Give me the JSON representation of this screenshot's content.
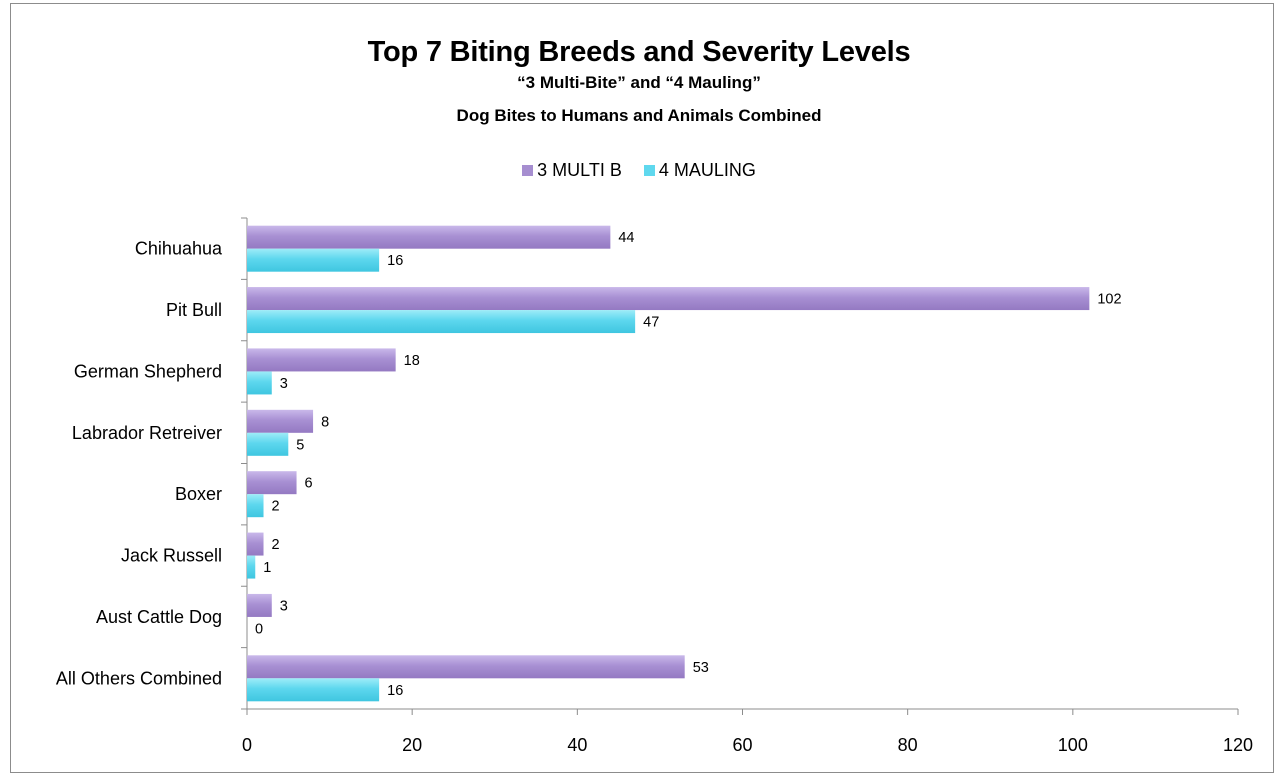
{
  "chart_data": {
    "type": "bar",
    "orientation": "horizontal",
    "title": "Top 7 Biting Breeds and Severity Levels",
    "subtitle": [
      "“3 Multi-Bite” and “4 Mauling”",
      "Dog Bites to Humans and Animals Combined"
    ],
    "categories": [
      "Chihuahua",
      "Pit Bull",
      "German Shepherd",
      "Labrador Retreiver",
      "Boxer",
      "Jack Russell",
      "Aust Cattle Dog",
      "All Others Combined"
    ],
    "series": [
      {
        "name": "3 MULTI B",
        "values": [
          44,
          102,
          18,
          8,
          6,
          2,
          3,
          53
        ],
        "color": "#a68ed0"
      },
      {
        "name": "4 MAULING",
        "values": [
          16,
          47,
          3,
          5,
          2,
          1,
          0,
          16
        ],
        "color": "#5fd8ee"
      }
    ],
    "xlim": [
      0,
      120
    ],
    "xticks": [
      "0",
      "20",
      "40",
      "60",
      "80",
      "100",
      "120"
    ],
    "xlabel": "",
    "ylabel": "",
    "grid": false,
    "legend_position": "top"
  }
}
